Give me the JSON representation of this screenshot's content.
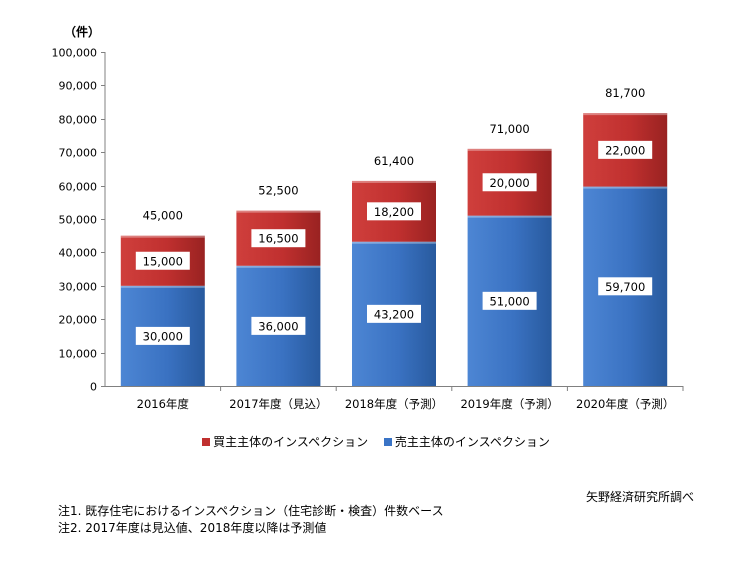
{
  "chart_data": {
    "type": "bar",
    "stacked": true,
    "unit_label": "（件）",
    "categories": [
      "2016年度",
      "2017年度（見込）",
      "2018年度（予測）",
      "2019年度（予測）",
      "2020年度（予測）"
    ],
    "series": [
      {
        "name": "売主主体のインスペクション",
        "values": [
          30000,
          36000,
          43200,
          51000,
          59700
        ],
        "labels": [
          "30,000",
          "36,000",
          "43,200",
          "51,000",
          "59,700"
        ],
        "color": "#3a74c6"
      },
      {
        "name": "買主主体のインスペクション",
        "values": [
          15000,
          16500,
          18200,
          20000,
          22000
        ],
        "labels": [
          "15,000",
          "16,500",
          "18,200",
          "20,000",
          "22,000"
        ],
        "color": "#c0302f"
      }
    ],
    "totals": [
      45000,
      52500,
      61400,
      71000,
      81700
    ],
    "total_labels": [
      "45,000",
      "52,500",
      "61,400",
      "71,000",
      "81,700"
    ],
    "ylim": [
      0,
      100000
    ],
    "yticks": [
      0,
      10000,
      20000,
      30000,
      40000,
      50000,
      60000,
      70000,
      80000,
      90000,
      100000
    ],
    "ytick_labels": [
      "0",
      "10,000",
      "20,000",
      "30,000",
      "40,000",
      "50,000",
      "60,000",
      "70,000",
      "80,000",
      "90,000",
      "100,000"
    ],
    "legend": [
      {
        "name": "買主主体のインスペクション",
        "color": "#c0302f"
      },
      {
        "name": "売主主体のインスペクション",
        "color": "#3a74c6"
      }
    ]
  },
  "source": "矢野経済研究所調べ",
  "notes": [
    "注1. 既存住宅におけるインスペクション（住宅診断・検査）件数ベース",
    "注2. 2017年度は見込値、2018年度以降は予測値"
  ]
}
